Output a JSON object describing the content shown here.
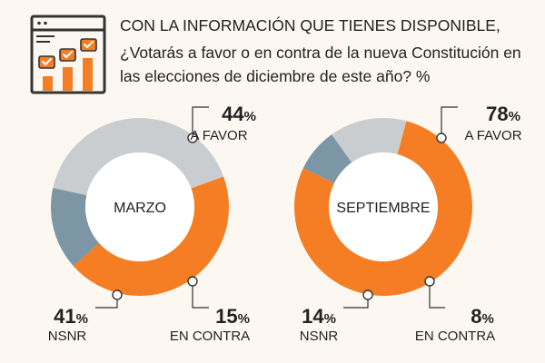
{
  "header": {
    "line1": "CON LA INFORMACIÓN QUE TIENES DISPONIBLE,",
    "line2": "¿Votarás a favor o en contra de la nueva Constitución en",
    "line3": "las elecciones de diciembre de este año? %",
    "icon": "survey-chart-icon"
  },
  "colors": {
    "favor": "#f57d23",
    "contra": "#7d96a6",
    "nsnr": "#c9cdcf",
    "leader": "#333333",
    "background": "#fcf8f1"
  },
  "chart_data": [
    {
      "type": "pie",
      "center_label": "MARZO",
      "slices": [
        {
          "key": "favor",
          "value": 44,
          "value_text": "44",
          "label": "A FAVOR"
        },
        {
          "key": "contra",
          "value": 15,
          "value_text": "15",
          "label": "EN CONTRA"
        },
        {
          "key": "nsnr",
          "value": 41,
          "value_text": "41",
          "label": "NSNR"
        }
      ],
      "unit": "%"
    },
    {
      "type": "pie",
      "center_label": "SEPTIEMBRE",
      "slices": [
        {
          "key": "favor",
          "value": 78,
          "value_text": "78",
          "label": "A FAVOR"
        },
        {
          "key": "contra",
          "value": 8,
          "value_text": "8",
          "label": "EN CONTRA"
        },
        {
          "key": "nsnr",
          "value": 14,
          "value_text": "14",
          "label": "NSNR"
        }
      ],
      "unit": "%"
    }
  ]
}
